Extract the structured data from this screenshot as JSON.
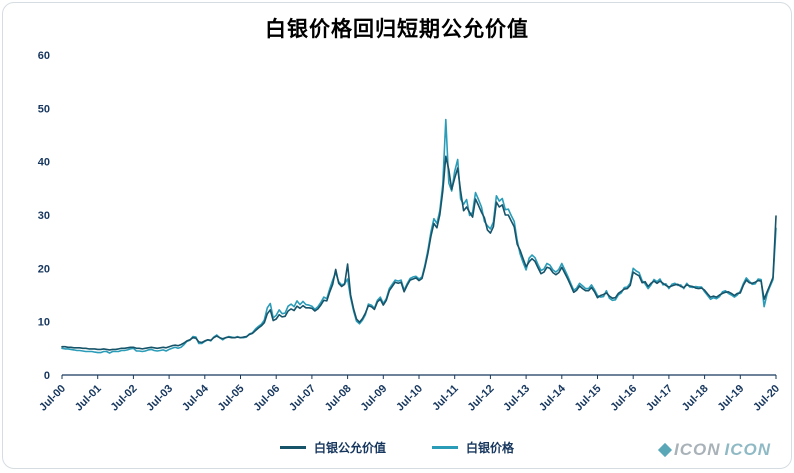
{
  "chart_data": {
    "type": "line",
    "title": "白银价格回归短期公允价值",
    "xlabel": "",
    "ylabel": "",
    "ylim": [
      0,
      60
    ],
    "y_ticks": [
      0,
      10,
      20,
      30,
      40,
      50,
      60
    ],
    "x_tick_labels": [
      "Jul-00",
      "Jul-01",
      "Jul-02",
      "Jul-03",
      "Jul-04",
      "Jul-05",
      "Jul-06",
      "Jul-07",
      "Jul-08",
      "Jul-09",
      "Jul-10",
      "Jul-11",
      "Jul-12",
      "Jul-13",
      "Jul-14",
      "Jul-15",
      "Jul-16",
      "Jul-17",
      "Jul-18",
      "Jul-19",
      "Jul-20"
    ],
    "x_interval": "monthly",
    "grid": false,
    "legend_position": "bottom-center",
    "axis_label_color": "#17375e",
    "series": [
      {
        "name": "白银公允价值",
        "color": "#17546a",
        "values": [
          5.3,
          5.3,
          5.2,
          5.2,
          5.1,
          5.1,
          5.1,
          5.0,
          5.0,
          4.9,
          4.9,
          4.9,
          4.8,
          4.8,
          4.9,
          4.8,
          4.7,
          4.8,
          4.8,
          4.9,
          5.0,
          5.0,
          5.1,
          5.2,
          5.2,
          5.0,
          5.0,
          4.9,
          5.0,
          5.1,
          5.2,
          5.1,
          5.0,
          5.1,
          5.2,
          5.1,
          5.3,
          5.5,
          5.6,
          5.5,
          5.7,
          6.0,
          6.4,
          6.6,
          7.0,
          6.9,
          6.2,
          6.1,
          6.4,
          6.6,
          6.5,
          7.0,
          7.3,
          7.0,
          6.8,
          7.0,
          7.1,
          7.0,
          7.0,
          7.1,
          7.0,
          7.1,
          7.2,
          7.6,
          7.8,
          8.3,
          8.8,
          9.2,
          9.8,
          11.5,
          12.2,
          10.2,
          10.5,
          11.3,
          10.9,
          11.0,
          12.0,
          12.4,
          12.1,
          12.9,
          12.5,
          13.0,
          12.6,
          12.6,
          12.5,
          12.0,
          12.4,
          13.1,
          14.0,
          13.9,
          15.6,
          17.0,
          19.8,
          17.2,
          16.6,
          17.0,
          20.8,
          15.0,
          12.4,
          10.5,
          9.9,
          10.6,
          11.6,
          13.0,
          12.8,
          12.3,
          13.7,
          14.2,
          13.1,
          14.0,
          15.8,
          16.6,
          17.4,
          17.2,
          17.4,
          15.6,
          16.8,
          17.8,
          18.0,
          18.2,
          17.7,
          18.1,
          20.2,
          22.8,
          26.0,
          28.4,
          27.6,
          30.0,
          34.5,
          41.0,
          38.5,
          34.8,
          36.9,
          38.8,
          34.5,
          30.8,
          31.5,
          30.5,
          29.6,
          33.0,
          31.8,
          30.5,
          29.5,
          27.2,
          26.6,
          27.8,
          32.4,
          31.5,
          31.9,
          30.0,
          30.0,
          28.9,
          27.8,
          24.5,
          23.4,
          21.8,
          20.3,
          21.2,
          21.8,
          21.3,
          20.1,
          19.0,
          19.3,
          20.2,
          20.0,
          19.2,
          18.8,
          19.2,
          20.2,
          19.1,
          18.0,
          16.8,
          15.5,
          15.9,
          16.7,
          16.2,
          15.8,
          15.8,
          16.4,
          15.6,
          14.5,
          14.9,
          15.1,
          15.4,
          14.8,
          14.4,
          14.5,
          15.3,
          15.7,
          16.1,
          16.2,
          16.8,
          19.3,
          18.9,
          18.6,
          17.3,
          17.5,
          16.6,
          17.2,
          17.6,
          17.2,
          17.6,
          17.2,
          16.8,
          16.5,
          16.7,
          16.9,
          17.0,
          16.6,
          16.4,
          16.9,
          16.7,
          16.6,
          16.3,
          16.2,
          16.3,
          15.9,
          15.2,
          14.6,
          14.8,
          14.6,
          15.0,
          15.3,
          15.5,
          15.6,
          15.3,
          14.9,
          15.3,
          15.4,
          16.8,
          17.8,
          17.3,
          17.2,
          17.4,
          17.7,
          17.6,
          14.2,
          15.6,
          16.9,
          18.3,
          29.8
        ]
      },
      {
        "name": "白银价格",
        "color": "#2b9cb8",
        "values": [
          5.0,
          4.9,
          4.9,
          4.8,
          4.7,
          4.6,
          4.6,
          4.5,
          4.4,
          4.4,
          4.4,
          4.3,
          4.2,
          4.2,
          4.4,
          4.4,
          4.1,
          4.4,
          4.4,
          4.4,
          4.6,
          4.6,
          4.7,
          4.9,
          5.0,
          4.5,
          4.5,
          4.4,
          4.5,
          4.7,
          4.8,
          4.6,
          4.5,
          4.6,
          4.7,
          4.5,
          4.8,
          5.0,
          5.2,
          5.0,
          5.2,
          5.7,
          6.3,
          6.5,
          7.2,
          7.1,
          5.9,
          5.9,
          6.3,
          6.6,
          6.4,
          7.1,
          7.5,
          7.0,
          6.6,
          7.0,
          7.2,
          7.1,
          7.0,
          7.2,
          7.0,
          7.0,
          7.1,
          7.7,
          7.9,
          8.6,
          9.1,
          9.5,
          10.3,
          12.6,
          13.4,
          10.7,
          11.2,
          12.2,
          11.5,
          11.6,
          12.9,
          13.3,
          12.8,
          13.9,
          13.2,
          13.8,
          13.2,
          13.1,
          12.9,
          12.3,
          12.8,
          13.6,
          14.6,
          14.3,
          16.2,
          17.8,
          19.2,
          17.5,
          16.9,
          17.1,
          18.0,
          14.5,
          12.0,
          10.1,
          9.6,
          10.3,
          11.3,
          13.3,
          13.1,
          12.5,
          14.0,
          14.6,
          13.4,
          14.3,
          16.2,
          17.0,
          17.8,
          17.6,
          17.8,
          15.9,
          17.1,
          18.1,
          18.4,
          18.5,
          18.0,
          18.4,
          20.6,
          23.4,
          26.8,
          29.3,
          28.4,
          30.8,
          35.8,
          47.9,
          36.0,
          34.5,
          38.2,
          40.4,
          33.0,
          32.0,
          32.9,
          29.9,
          30.5,
          34.2,
          32.9,
          31.5,
          28.8,
          28.0,
          27.4,
          28.7,
          33.6,
          32.6,
          33.1,
          31.0,
          31.1,
          29.9,
          28.8,
          25.2,
          22.7,
          21.1,
          19.7,
          21.9,
          22.5,
          22.0,
          20.7,
          19.6,
          19.9,
          20.9,
          20.6,
          19.7,
          19.3,
          19.8,
          20.9,
          19.7,
          18.5,
          17.2,
          15.9,
          16.3,
          17.2,
          16.7,
          16.2,
          16.2,
          16.9,
          16.0,
          14.9,
          14.6,
          14.7,
          15.8,
          14.4,
          14.0,
          14.1,
          15.0,
          15.4,
          16.4,
          16.5,
          17.2,
          20.0,
          19.5,
          19.2,
          17.7,
          17.1,
          16.2,
          16.9,
          17.9,
          17.5,
          18.0,
          16.9,
          17.1,
          16.2,
          17.0,
          17.2,
          16.8,
          16.9,
          16.2,
          17.2,
          16.5,
          16.4,
          16.6,
          16.5,
          16.5,
          15.6,
          14.9,
          14.2,
          14.5,
          14.3,
          14.7,
          15.6,
          15.8,
          15.3,
          15.0,
          14.6,
          15.0,
          15.7,
          17.1,
          18.2,
          17.6,
          17.0,
          17.1,
          18.0,
          17.9,
          12.8,
          15.2,
          16.6,
          17.9,
          27.5
        ]
      }
    ]
  },
  "legend": {
    "item1": "白银公允价值",
    "item2": "白银价格"
  },
  "watermark": {
    "part1": "ICON",
    "part2": "ICON"
  }
}
